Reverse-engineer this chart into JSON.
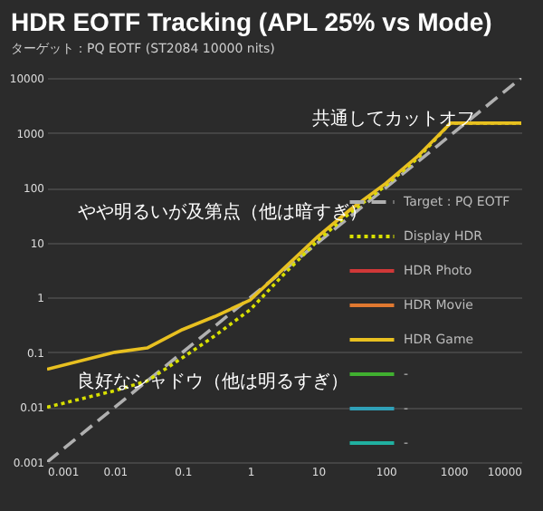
{
  "chart_data": {
    "type": "line",
    "title": "HDR EOTF Tracking (APL 25% vs Mode)",
    "subtitle": "ターゲット：PQ EOTF (ST2084 10000 nits)",
    "log": "xy",
    "grid": "y",
    "legend": "bottom right",
    "xlim": [
      0.001,
      10000
    ],
    "ylim": [
      0.001,
      10000
    ],
    "xticks": [
      0.001,
      0.01,
      0.1,
      1,
      10,
      100,
      1000,
      10000
    ],
    "yticks": [
      0.001,
      0.01,
      0.1,
      1,
      10,
      100,
      1000,
      10000
    ],
    "series": [
      {
        "name": "Target : PQ EOTF",
        "color": "#b0b0b0",
        "line_style": "dashed",
        "x": [
          0.001,
          10000
        ],
        "values": [
          0.001,
          10000
        ]
      },
      {
        "name": "Display HDR",
        "color": "#d8e000",
        "line_style": "dotted",
        "x": [
          0.001,
          0.01,
          0.03,
          0.1,
          0.3,
          1,
          3,
          10,
          30,
          100,
          300,
          900,
          10000
        ],
        "values": [
          0.01,
          0.02,
          0.03,
          0.08,
          0.2,
          0.6,
          2.5,
          11,
          35,
          110,
          350,
          1500,
          1500
        ]
      },
      {
        "name": "HDR Photo",
        "color": "#d03838",
        "line_style": "solid",
        "values": [
          null
        ]
      },
      {
        "name": "HDR Movie",
        "color": "#e07830",
        "line_style": "solid",
        "values": [
          null
        ]
      },
      {
        "name": "HDR Game",
        "color": "#e8c020",
        "line_style": "solid",
        "x": [
          0.001,
          0.01,
          0.03,
          0.1,
          0.3,
          1,
          3,
          10,
          30,
          100,
          300,
          900,
          10000
        ],
        "values": [
          0.049,
          0.1,
          0.12,
          0.26,
          0.45,
          0.9,
          3.2,
          13,
          40,
          120,
          380,
          1500,
          1500
        ]
      },
      {
        "name": "-",
        "color": "#40b030",
        "line_style": "solid",
        "values": [
          null
        ]
      },
      {
        "name": "-",
        "color": "#30a0b8",
        "line_style": "solid",
        "values": [
          null
        ]
      },
      {
        "name": "-",
        "color": "#20b0a0",
        "line_style": "solid",
        "values": [
          null
        ]
      }
    ],
    "annotations": [
      "共通してカットオフ",
      "やや明るいが及第点（他は暗すぎ）",
      "良好なシャドウ（他は明るすぎ）"
    ]
  }
}
